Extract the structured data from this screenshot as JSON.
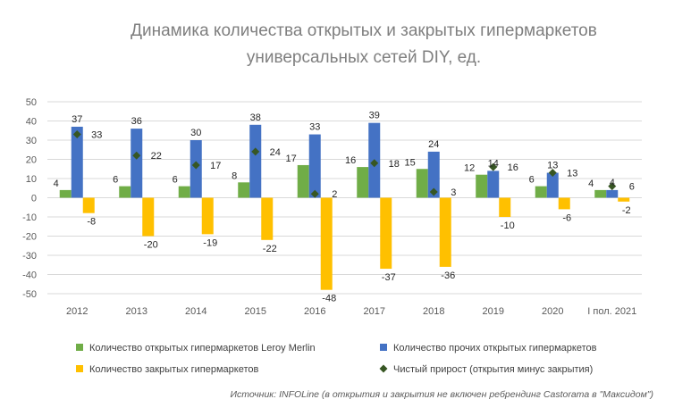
{
  "chart_data": {
    "type": "bar",
    "title_line1": "Динамика количества открытых и закрытых  гипермаркетов",
    "title_line2": "универсальных сетей DIY, ед.",
    "categories": [
      "2012",
      "2013",
      "2014",
      "2015",
      "2016",
      "2017",
      "2018",
      "2019",
      "2020",
      "I пол. 2021"
    ],
    "ylim": [
      -50,
      50
    ],
    "yticks": [
      -50,
      -40,
      -30,
      -20,
      -10,
      0,
      10,
      20,
      30,
      40,
      50
    ],
    "grid": true,
    "legend_position": "bottom",
    "series": [
      {
        "name": "Количество открытых гипермаркетов Leroy Merlin",
        "type": "bar",
        "color": "#70ad47",
        "values": [
          4,
          6,
          6,
          8,
          17,
          16,
          15,
          12,
          6,
          4
        ]
      },
      {
        "name": "Количество прочих открытых гипермаркетов",
        "type": "bar",
        "color": "#4472c4",
        "values": [
          37,
          36,
          30,
          38,
          33,
          39,
          24,
          14,
          13,
          4
        ]
      },
      {
        "name": "Количество закрытых гипермаркетов",
        "type": "bar",
        "color": "#ffc000",
        "values": [
          -8,
          -20,
          -19,
          -22,
          -48,
          -37,
          -36,
          -10,
          -6,
          -2
        ]
      },
      {
        "name": "Чистый прирост (открытия минус закрытия)",
        "type": "marker",
        "color": "#375623",
        "values": [
          33,
          22,
          17,
          24,
          2,
          18,
          3,
          16,
          13,
          6
        ]
      }
    ],
    "source_note": "Источник:  INFOLine  (в открытия  и закрытия  не включен ребрендинг  Castorama в \"Максидом\")"
  }
}
